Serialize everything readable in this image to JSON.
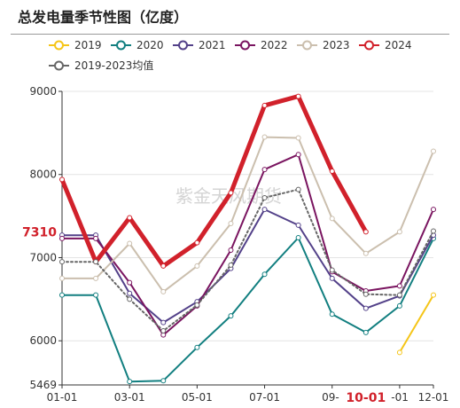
{
  "title": "总发电量季节性图（亿度）",
  "watermark": "紫金天风期货",
  "chart_data": {
    "type": "line",
    "xlabel": "",
    "ylabel": "",
    "x_tick_labels": [
      "01-01",
      "03-01",
      "05-01",
      "07-01",
      "09-",
      "-01",
      "12-01"
    ],
    "y_tick_labels": [
      "5469",
      "6000",
      "7000",
      "8000",
      "9000"
    ],
    "ylim": [
      5469,
      9000
    ],
    "grid": "horizontal",
    "legend_position": "top",
    "current_value_label": "7310",
    "current_date_label": "10-01",
    "months": [
      1,
      2,
      3,
      4,
      5,
      6,
      7,
      8,
      9,
      10,
      11,
      12
    ],
    "series": [
      {
        "name": "2019",
        "color": "#f5c518",
        "style": "solid",
        "values": [
          null,
          null,
          null,
          null,
          null,
          null,
          null,
          null,
          null,
          null,
          5860,
          6550
        ]
      },
      {
        "name": "2020",
        "color": "#127f80",
        "style": "solid",
        "values": [
          6550,
          6550,
          5510,
          5520,
          5920,
          6300,
          6800,
          7240,
          6320,
          6100,
          6420,
          7230
        ]
      },
      {
        "name": "2021",
        "color": "#534189",
        "style": "solid",
        "values": [
          7270,
          7270,
          6570,
          6220,
          6470,
          6870,
          7580,
          7390,
          6750,
          6390,
          6540,
          7270
        ]
      },
      {
        "name": "2022",
        "color": "#7a1560",
        "style": "solid",
        "values": [
          7230,
          7230,
          6700,
          6070,
          6420,
          7090,
          8060,
          8240,
          6830,
          6600,
          6660,
          7580
        ]
      },
      {
        "name": "2023",
        "color": "#cbbfae",
        "style": "solid",
        "values": [
          6750,
          6750,
          7170,
          6590,
          6900,
          7410,
          8450,
          8440,
          7470,
          7050,
          7310,
          8280
        ]
      },
      {
        "name": "2024",
        "color": "#d1212b",
        "style": "bold",
        "values": [
          7940,
          6950,
          7480,
          6900,
          7180,
          7780,
          8830,
          8940,
          8040,
          7310,
          null,
          null
        ]
      },
      {
        "name": "2019-2023均值",
        "color": "#666666",
        "style": "dotted",
        "values": [
          6950,
          6950,
          6500,
          6120,
          6430,
          6910,
          7720,
          7820,
          6850,
          6560,
          6550,
          7320
        ]
      }
    ]
  }
}
